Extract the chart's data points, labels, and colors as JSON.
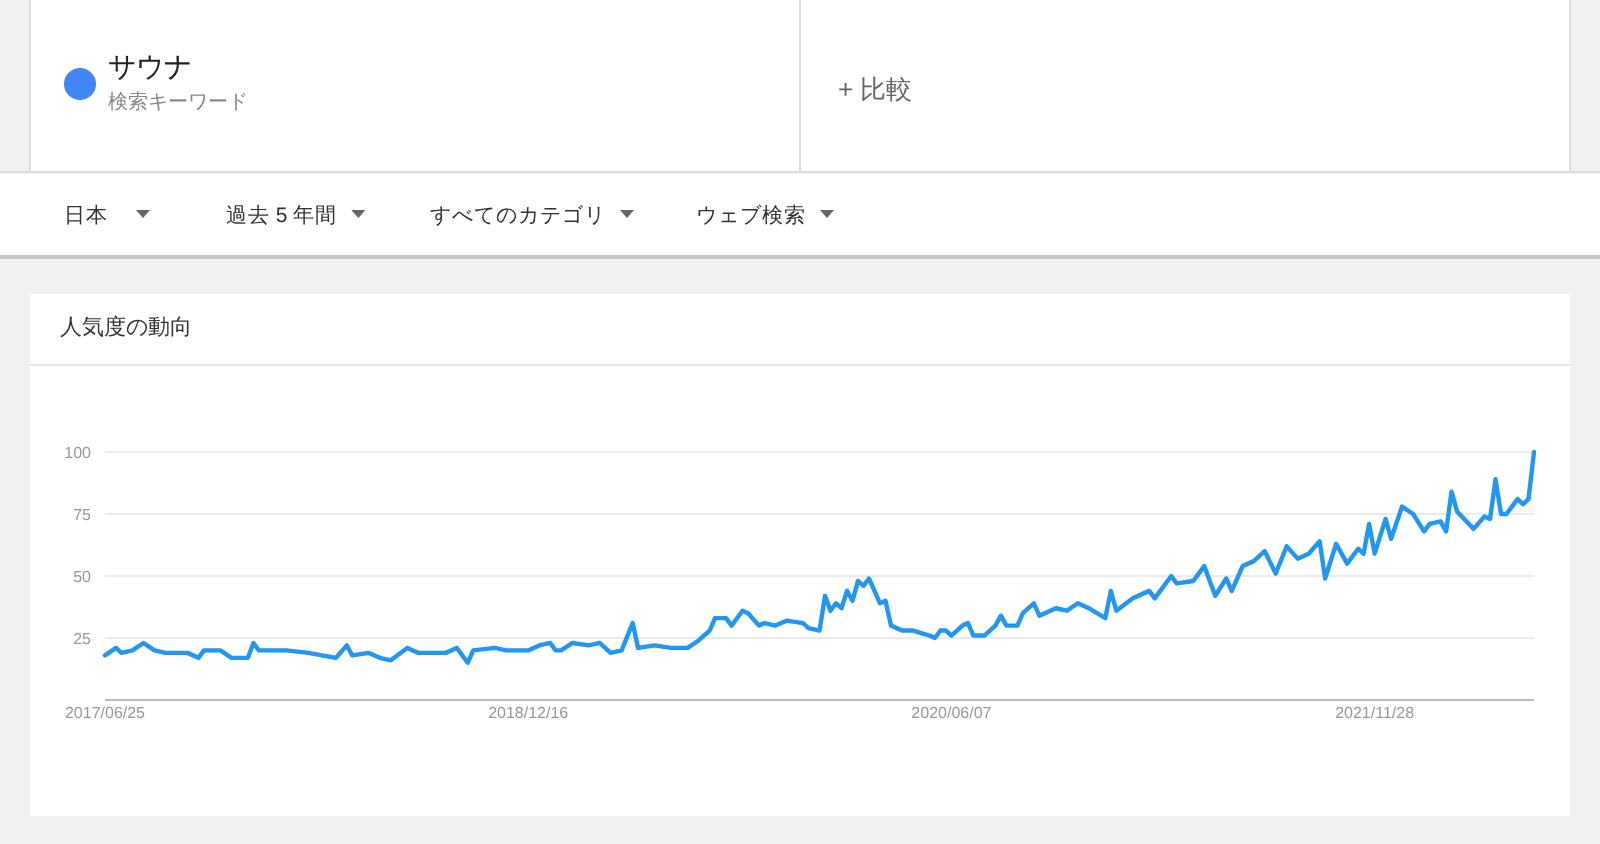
{
  "chart_data": {
    "type": "line",
    "title": "人気度の動向",
    "subtitle": "検索キーワード",
    "annotations": [
      "+ 比較",
      "日本",
      "過去 5 年間",
      "すべてのカテゴリ",
      "ウェブ検索"
    ],
    "legend": "top left",
    "grid": "y",
    "line_style": "solid",
    "marker": "none",
    "xlim": [
      "2017-06-25",
      "2022-06-19"
    ],
    "xticks": [
      {
        "value": "2017-06-25",
        "label": "2017/06/25"
      },
      {
        "value": "2018-12-16",
        "label": "2018/12/16"
      },
      {
        "value": "2020-06-07",
        "label": "2020/06/07"
      },
      {
        "value": "2021-11-28",
        "label": "2021/11/28"
      }
    ],
    "ylim": [
      0,
      100
    ],
    "yticks": [
      {
        "value": 0,
        "label": null
      },
      25,
      50,
      75,
      100
    ],
    "series": [
      {
        "name": "サウナ",
        "color": "#2196f3",
        "x": [
          "2017-06-25",
          "2017-07-09",
          "2017-07-16",
          "2017-07-30",
          "2017-08-13",
          "2017-08-27",
          "2017-09-10",
          "2017-10-08",
          "2017-10-22",
          "2017-10-29",
          "2017-11-19",
          "2017-12-03",
          "2017-12-24",
          "2017-12-31",
          "2018-01-07",
          "2018-02-11",
          "2018-03-11",
          "2018-04-15",
          "2018-04-29",
          "2018-05-06",
          "2018-05-27",
          "2018-06-10",
          "2018-06-24",
          "2018-07-15",
          "2018-07-29",
          "2018-08-19",
          "2018-09-02",
          "2018-09-16",
          "2018-09-30",
          "2018-10-07",
          "2018-11-04",
          "2018-11-18",
          "2018-12-16",
          "2018-12-30",
          "2019-01-13",
          "2019-01-20",
          "2019-01-27",
          "2019-02-10",
          "2019-03-03",
          "2019-03-17",
          "2019-03-31",
          "2019-04-14",
          "2019-04-28",
          "2019-05-05",
          "2019-05-26",
          "2019-06-16",
          "2019-07-07",
          "2019-07-21",
          "2019-08-04",
          "2019-08-11",
          "2019-08-25",
          "2019-09-01",
          "2019-09-15",
          "2019-09-22",
          "2019-10-06",
          "2019-10-13",
          "2019-10-27",
          "2019-11-10",
          "2019-12-01",
          "2019-12-08",
          "2019-12-22",
          "2019-12-29",
          "2020-01-05",
          "2020-01-12",
          "2020-01-19",
          "2020-01-26",
          "2020-02-02",
          "2020-02-09",
          "2020-02-16",
          "2020-02-23",
          "2020-03-01",
          "2020-03-08",
          "2020-03-15",
          "2020-03-22",
          "2020-04-05",
          "2020-04-19",
          "2020-05-10",
          "2020-05-17",
          "2020-05-24",
          "2020-05-31",
          "2020-06-07",
          "2020-06-21",
          "2020-06-28",
          "2020-07-05",
          "2020-07-19",
          "2020-08-02",
          "2020-08-09",
          "2020-08-16",
          "2020-08-30",
          "2020-09-06",
          "2020-09-20",
          "2020-09-27",
          "2020-10-18",
          "2020-11-01",
          "2020-11-15",
          "2020-11-29",
          "2020-12-20",
          "2020-12-27",
          "2021-01-03",
          "2021-01-24",
          "2021-02-14",
          "2021-02-21",
          "2021-03-14",
          "2021-03-21",
          "2021-04-11",
          "2021-04-25",
          "2021-05-09",
          "2021-05-23",
          "2021-05-30",
          "2021-06-13",
          "2021-06-27",
          "2021-07-11",
          "2021-07-25",
          "2021-08-08",
          "2021-08-22",
          "2021-09-05",
          "2021-09-19",
          "2021-09-26",
          "2021-10-10",
          "2021-10-24",
          "2021-11-07",
          "2021-11-14",
          "2021-11-21",
          "2021-11-28",
          "2021-12-12",
          "2021-12-19",
          "2022-01-02",
          "2022-01-16",
          "2022-01-30",
          "2022-02-06",
          "2022-02-20",
          "2022-02-27",
          "2022-03-06",
          "2022-03-13",
          "2022-04-03",
          "2022-04-17",
          "2022-04-24",
          "2022-05-01",
          "2022-05-08",
          "2022-05-15",
          "2022-05-29",
          "2022-06-05",
          "2022-06-12",
          "2022-06-19"
        ],
        "values": [
          18,
          21,
          19,
          20,
          23,
          20,
          19,
          19,
          17,
          20,
          20,
          17,
          17,
          23,
          20,
          20,
          19,
          17,
          22,
          18,
          19,
          17,
          16,
          21,
          19,
          19,
          19,
          21,
          15,
          20,
          21,
          20,
          20,
          22,
          23,
          20,
          20,
          23,
          22,
          23,
          19,
          20,
          31,
          21,
          22,
          21,
          21,
          24,
          28,
          33,
          33,
          30,
          36,
          35,
          30,
          31,
          30,
          32,
          31,
          29,
          28,
          42,
          36,
          39,
          37,
          44,
          40,
          48,
          46,
          49,
          44,
          39,
          40,
          30,
          28,
          28,
          26,
          25,
          28,
          28,
          26,
          30,
          31,
          26,
          26,
          30,
          34,
          30,
          30,
          35,
          39,
          34,
          37,
          36,
          39,
          37,
          33,
          44,
          36,
          41,
          44,
          41,
          50,
          47,
          48,
          54,
          42,
          49,
          44,
          54,
          56,
          60,
          51,
          62,
          57,
          59,
          64,
          49,
          63,
          55,
          61,
          59,
          71,
          59,
          73,
          65,
          78,
          75,
          68,
          71,
          72,
          68,
          84,
          76,
          69,
          74,
          73,
          89,
          75,
          75,
          81,
          79,
          81,
          100
        ]
      }
    ]
  }
}
